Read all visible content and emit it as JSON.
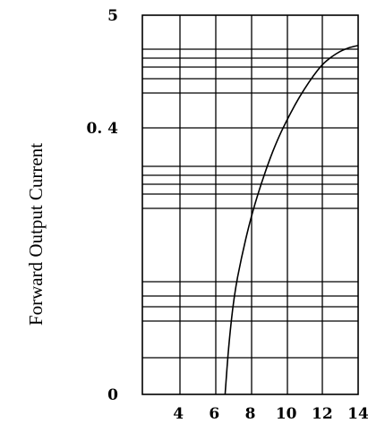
{
  "chart_data": {
    "type": "line",
    "title": "",
    "xlabel": "",
    "ylabel": "Forward Output Current",
    "x_ticks": [
      "4",
      "6",
      "8",
      "10",
      "12",
      "14"
    ],
    "x_tick_values": [
      4,
      6,
      8,
      10,
      12,
      14
    ],
    "y_ticks": [
      "0",
      "0. 4",
      "5"
    ],
    "xlim": [
      2,
      14
    ],
    "grid": true,
    "legend": "none",
    "series": [
      {
        "x": [
          6.6,
          6.8,
          7.1,
          7.5,
          8.0,
          8.5,
          9.0,
          9.5,
          10.0,
          10.5,
          11.0,
          11.5,
          12.0,
          12.5,
          13.0,
          13.5,
          14.0
        ],
        "y_fraction_of_axis": [
          0.0,
          0.13,
          0.26,
          0.36,
          0.46,
          0.54,
          0.61,
          0.67,
          0.72,
          0.765,
          0.805,
          0.84,
          0.87,
          0.89,
          0.905,
          0.915,
          0.92
        ]
      }
    ],
    "colors": {
      "line": "#000000",
      "grid": "#000000",
      "background": "#ffffff"
    }
  }
}
